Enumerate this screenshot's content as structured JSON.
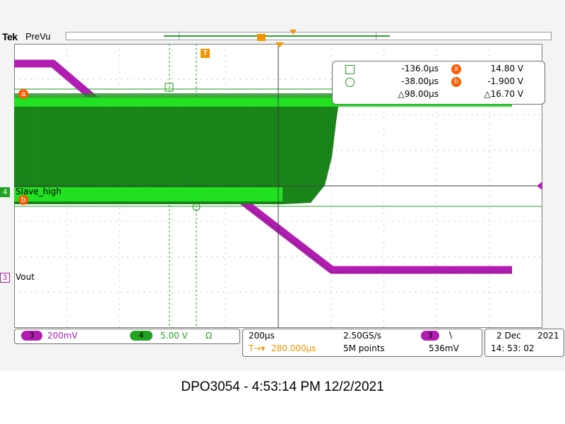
{
  "header": {
    "brand": "Tek",
    "mode": "PreVu"
  },
  "trigger": {
    "marker": "T"
  },
  "channels": {
    "ch4": {
      "number": "4",
      "label": "Slave_high",
      "color": "#1f9e1f"
    },
    "ch3": {
      "number": "3",
      "label": "Vout",
      "color": "#b01db0"
    }
  },
  "cursors": {
    "a_marker": "a",
    "b_marker": "b",
    "t1": "-136.0µs",
    "t2": "-38.00µs",
    "dt": "△98.00µs",
    "v_a_label": "a",
    "v_a": "14.80 V",
    "v_b_label": "b",
    "v_b": "-1.900 V",
    "dv": "△16.70 V"
  },
  "status": {
    "ch3_num": "3",
    "ch3_scale": "200mV",
    "ch4_num": "4",
    "ch4_scale": "5.00 V",
    "ch4_term": "Ω",
    "timebase": "200µs",
    "sample_rate": "2.50GS/s",
    "trig_src": "3",
    "trig_slope": "\\",
    "delay": "280.000µs",
    "delay_prefix": "T→▾",
    "record": "5M points",
    "trig_level": "536mV",
    "date": "2 Dec",
    "year": "2021",
    "time": "14: 53: 02"
  },
  "caption": "DPO3054 - 4:53:14 PM    12/2/2021",
  "colors": {
    "ch4": "#1f9e1f",
    "ch4_bright": "#22e022",
    "ch3": "#b01db0",
    "cursor": "#ff5a00",
    "trigger": "#f29500"
  }
}
